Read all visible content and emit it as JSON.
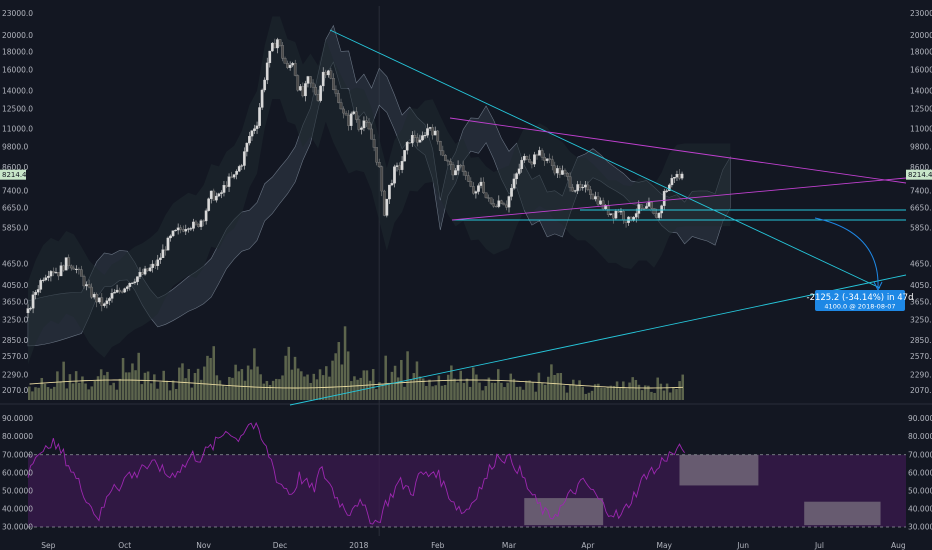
{
  "colors": {
    "background": "#131722",
    "candle_up": "#d9d9d9",
    "candle_down": "#4a4a4a",
    "trend_cyan": "#26c6da",
    "trend_magenta": "#c040d0",
    "rsi_line": "#9c27b0",
    "rsi_band": "#3b1a4f",
    "volume": "#6b7355",
    "volume_ma": "#e8d9a0",
    "cloud": "#3a4552",
    "projection": "#1e88e5",
    "price_tag": "#c8e6c9"
  },
  "chart_data": [
    {
      "type": "candlestick",
      "panel": "price",
      "x_axis_months": [
        "Sep",
        "Oct",
        "Nov",
        "Dec",
        "2018",
        "Feb",
        "Mar",
        "Apr",
        "May",
        "Jun",
        "Jul",
        "Aug"
      ],
      "y_scale": "log",
      "y_ticks_left": [
        "23000.0",
        "20000.0",
        "18000.0",
        "16000.0",
        "14000.0",
        "12500.0",
        "11000.0",
        "9800.0",
        "8600.0",
        "7400.0",
        "6650.0",
        "5850.0",
        "4650.0",
        "4050.0",
        "3650.0",
        "3250.0",
        "2850.0",
        "2570.0",
        "2290.0",
        "2070.0"
      ],
      "y_ticks_right": [
        "23000.0",
        "20000.0",
        "18000.0",
        "16000.0",
        "14000.0",
        "12500.0",
        "11000.0",
        "9800.0",
        "8600.0",
        "7400.0",
        "6650.0",
        "5850.0",
        "4650.0",
        "4050.0",
        "3650.0",
        "3250.0",
        "2850.0",
        "2570.0",
        "2290.0",
        "2070.0"
      ],
      "last_price_left": "8214.4",
      "last_price_right": "8214.4",
      "close_path": [
        [
          0,
          3400
        ],
        [
          3,
          3900
        ],
        [
          6,
          4300
        ],
        [
          9,
          4500
        ],
        [
          12,
          4400
        ],
        [
          15,
          4700
        ],
        [
          18,
          4600
        ],
        [
          21,
          4250
        ],
        [
          24,
          3900
        ],
        [
          27,
          3700
        ],
        [
          30,
          3550
        ],
        [
          33,
          3800
        ],
        [
          36,
          3900
        ],
        [
          39,
          4100
        ],
        [
          42,
          4250
        ],
        [
          45,
          4350
        ],
        [
          48,
          4500
        ],
        [
          51,
          4700
        ],
        [
          54,
          5200
        ],
        [
          57,
          5600
        ],
        [
          60,
          5800
        ],
        [
          63,
          6000
        ],
        [
          66,
          5900
        ],
        [
          69,
          6300
        ],
        [
          72,
          7200
        ],
        [
          75,
          7100
        ],
        [
          78,
          7800
        ],
        [
          81,
          8100
        ],
        [
          84,
          8900
        ],
        [
          87,
          10500
        ],
        [
          90,
          11500
        ],
        [
          92,
          14000
        ],
        [
          94,
          16800
        ],
        [
          96,
          18500
        ],
        [
          98,
          19500
        ],
        [
          100,
          17500
        ],
        [
          102,
          16000
        ],
        [
          104,
          17000
        ],
        [
          106,
          14500
        ],
        [
          108,
          13600
        ],
        [
          110,
          15000
        ],
        [
          112,
          14200
        ],
        [
          114,
          13500
        ],
        [
          116,
          15800
        ],
        [
          118,
          16200
        ],
        [
          120,
          14000
        ],
        [
          122,
          13400
        ],
        [
          124,
          12000
        ],
        [
          126,
          11500
        ],
        [
          128,
          12300
        ],
        [
          130,
          11200
        ],
        [
          132,
          11600
        ],
        [
          134,
          10800
        ],
        [
          136,
          9800
        ],
        [
          138,
          8500
        ],
        [
          139,
          7200
        ],
        [
          140,
          6500
        ],
        [
          142,
          7600
        ],
        [
          144,
          8400
        ],
        [
          146,
          8600
        ],
        [
          148,
          9400
        ],
        [
          150,
          10300
        ],
        [
          152,
          10500
        ],
        [
          154,
          10000
        ],
        [
          156,
          10800
        ],
        [
          158,
          11200
        ],
        [
          160,
          10600
        ],
        [
          162,
          9800
        ],
        [
          164,
          9100
        ],
        [
          166,
          8600
        ],
        [
          168,
          8200
        ],
        [
          170,
          8900
        ],
        [
          172,
          8100
        ],
        [
          174,
          7500
        ],
        [
          176,
          7200
        ],
        [
          178,
          7900
        ],
        [
          180,
          7100
        ],
        [
          182,
          6800
        ],
        [
          184,
          6900
        ],
        [
          186,
          7000
        ],
        [
          188,
          6800
        ],
        [
          190,
          7500
        ],
        [
          192,
          8200
        ],
        [
          194,
          8900
        ],
        [
          196,
          9300
        ],
        [
          198,
          9000
        ],
        [
          200,
          9500
        ],
        [
          202,
          9200
        ],
        [
          204,
          9100
        ],
        [
          206,
          8700
        ],
        [
          208,
          8400
        ],
        [
          210,
          8300
        ],
        [
          212,
          8000
        ],
        [
          214,
          7600
        ],
        [
          216,
          7500
        ],
        [
          218,
          7400
        ],
        [
          220,
          7600
        ],
        [
          222,
          7200
        ],
        [
          224,
          7000
        ],
        [
          226,
          6700
        ],
        [
          228,
          6500
        ],
        [
          230,
          6400
        ],
        [
          232,
          6600
        ],
        [
          234,
          6300
        ],
        [
          236,
          6100
        ],
        [
          238,
          6400
        ],
        [
          240,
          6600
        ],
        [
          242,
          6500
        ],
        [
          244,
          6700
        ],
        [
          246,
          6300
        ],
        [
          248,
          6400
        ],
        [
          250,
          7300
        ],
        [
          252,
          7700
        ],
        [
          254,
          8200
        ],
        [
          256,
          8100
        ],
        [
          258,
          8214
        ]
      ],
      "annotations": {
        "projection_label": "-2125.2 (-34.14%) in 47d",
        "projection_sub": "4100.0  @ 2018-08-07"
      }
    },
    {
      "type": "bar",
      "panel": "volume",
      "series": [
        {
          "values": [
            30,
            45,
            25,
            60,
            40,
            55,
            35,
            70,
            50,
            40,
            65,
            85,
            45,
            30,
            55,
            40,
            75,
            50,
            60,
            90,
            55,
            40,
            70,
            80,
            95,
            60,
            45,
            85,
            70,
            50,
            40,
            55,
            90,
            110,
            75,
            60,
            50,
            40,
            65,
            55,
            45,
            70,
            35,
            50,
            40,
            60,
            45,
            55,
            35,
            40,
            50,
            45,
            30,
            40,
            35,
            55,
            45,
            30,
            40,
            25,
            35,
            45,
            50,
            30,
            40,
            35,
            25,
            40,
            30,
            45
          ]
        }
      ]
    },
    {
      "type": "line",
      "panel": "rsi",
      "y_ticks_left": [
        "90.0000",
        "80.0000",
        "70.0000",
        "60.0000",
        "50.0000",
        "40.0000",
        "30.0000"
      ],
      "y_ticks_right": [
        "90.0000",
        "80.0000",
        "70.0000",
        "60.0000",
        "50.0000",
        "40.0000",
        "30.0000"
      ],
      "band": [
        30,
        70
      ],
      "values": [
        60,
        72,
        68,
        78,
        74,
        70,
        62,
        55,
        48,
        40,
        35,
        45,
        55,
        52,
        60,
        58,
        65,
        62,
        66,
        60,
        58,
        62,
        64,
        70,
        68,
        72,
        75,
        80,
        85,
        78,
        82,
        88,
        84,
        76,
        68,
        55,
        52,
        48,
        58,
        54,
        50,
        62,
        56,
        48,
        42,
        38,
        45,
        40,
        35,
        32,
        42,
        48,
        55,
        52,
        50,
        60,
        58,
        62,
        55,
        48,
        42,
        38,
        42,
        50,
        55,
        65,
        70,
        68,
        66,
        60,
        52,
        45,
        40,
        35,
        38,
        42,
        48,
        52,
        55,
        50,
        45,
        40,
        38,
        35,
        42,
        48,
        55,
        62,
        60,
        68,
        70,
        72,
        74
      ],
      "boxes": [
        {
          "from_month_index": 6.2,
          "to_month_index": 7.2,
          "low": 31,
          "high": 46
        },
        {
          "from_month_index": 8.2,
          "to_month_index": 9.2,
          "low": 53,
          "high": 70
        },
        {
          "from_month_index": 9.8,
          "to_month_index": 10.8,
          "low": 31,
          "high": 44
        }
      ]
    }
  ]
}
